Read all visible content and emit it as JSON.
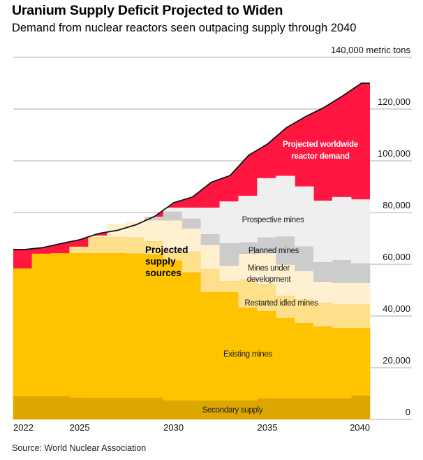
{
  "header": {
    "title": "Uranium Supply Deficit Projected to Widen",
    "subtitle": "Demand from nuclear reactors seen outpacing supply through 2040"
  },
  "footer": {
    "source": "Source: World Nuclear Association"
  },
  "chart_data": {
    "type": "area",
    "title": "Uranium Supply Deficit Projected to Widen",
    "subtitle": "Demand from nuclear reactors seen outpacing supply through 2040",
    "xlabel": "",
    "ylabel": "metric tons",
    "ylim": [
      0,
      140000
    ],
    "grid": true,
    "y_ticks": [
      {
        "value": 0,
        "label": "0"
      },
      {
        "value": 20000,
        "label": "20,000"
      },
      {
        "value": 40000,
        "label": "40,000"
      },
      {
        "value": 60000,
        "label": "60,000"
      },
      {
        "value": 80000,
        "label": "80,000"
      },
      {
        "value": 100000,
        "label": "100,000"
      },
      {
        "value": 120000,
        "label": "120,000"
      },
      {
        "value": 140000,
        "label": "140,000 metric tons"
      }
    ],
    "x_ticks": [
      {
        "value": 2022,
        "label": "2022"
      },
      {
        "value": 2025,
        "label": "2025"
      },
      {
        "value": 2030,
        "label": "2030"
      },
      {
        "value": 2035,
        "label": "2035"
      },
      {
        "value": 2040,
        "label": "2040"
      }
    ],
    "x": [
      2022,
      2023,
      2024,
      2025,
      2026,
      2027,
      2028,
      2029,
      2030,
      2031,
      2032,
      2033,
      2034,
      2035,
      2036,
      2037,
      2038,
      2039,
      2040
    ],
    "demand": {
      "name": "Projected worldwide reactor demand",
      "label_lines": [
        "Projected worldwide",
        "reactor demand"
      ],
      "color": "#FF1741",
      "values": [
        65700,
        66400,
        68000,
        69500,
        71900,
        73100,
        75300,
        78600,
        83800,
        86000,
        91700,
        94300,
        102200,
        106500,
        112800,
        117000,
        120600,
        125100,
        130000
      ]
    },
    "supply_group_label": [
      "Projected",
      "supply",
      "sources"
    ],
    "series": [
      {
        "name": "Secondary supply",
        "label_lines": [
          "Secondary supply"
        ],
        "color": "#DBA700",
        "values": [
          8900,
          8900,
          8900,
          8400,
          8400,
          8400,
          8400,
          8400,
          7300,
          7300,
          7300,
          7300,
          7300,
          8100,
          8100,
          8100,
          8100,
          8100,
          9200
        ]
      },
      {
        "name": "Existing mines",
        "label_lines": [
          "Existing mines"
        ],
        "color": "#FFC300",
        "values": [
          49500,
          55200,
          55400,
          55900,
          55900,
          55900,
          55700,
          55400,
          54100,
          49500,
          41900,
          41900,
          35900,
          33800,
          31100,
          29200,
          27800,
          27300,
          26200
        ]
      },
      {
        "name": "Restarted idled mines",
        "label_lines": [
          "Restarted idled mines"
        ],
        "color": "#FFE08A",
        "values": [
          0,
          0,
          0,
          2500,
          6200,
          6200,
          6200,
          5100,
          3500,
          8100,
          8900,
          4300,
          10900,
          10300,
          8600,
          9200,
          9200,
          9200,
          9200
        ]
      },
      {
        "name": "Mines under development",
        "label_lines": [
          "Mines under",
          "development"
        ],
        "color": "#FFF0D0",
        "values": [
          0,
          0,
          0,
          0,
          600,
          5200,
          6200,
          8100,
          12100,
          8900,
          9500,
          6000,
          10000,
          12100,
          12100,
          10900,
          8200,
          8100,
          8100
        ]
      },
      {
        "name": "Planned mines",
        "label_lines": [
          "Planned mines"
        ],
        "color": "#CCCCCC",
        "values": [
          0,
          0,
          0,
          0,
          0,
          0,
          0,
          1400,
          3300,
          3800,
          4000,
          8600,
          4300,
          6000,
          10800,
          9400,
          7500,
          8900,
          7600
        ]
      },
      {
        "name": "Prospective mines",
        "label_lines": [
          "Prospective mines"
        ],
        "color": "#EFEFEF",
        "values": [
          0,
          0,
          0,
          0,
          0,
          0,
          0,
          0,
          1600,
          4300,
          10300,
          16200,
          18100,
          23000,
          23500,
          23300,
          23800,
          24400,
          24800
        ]
      }
    ]
  }
}
